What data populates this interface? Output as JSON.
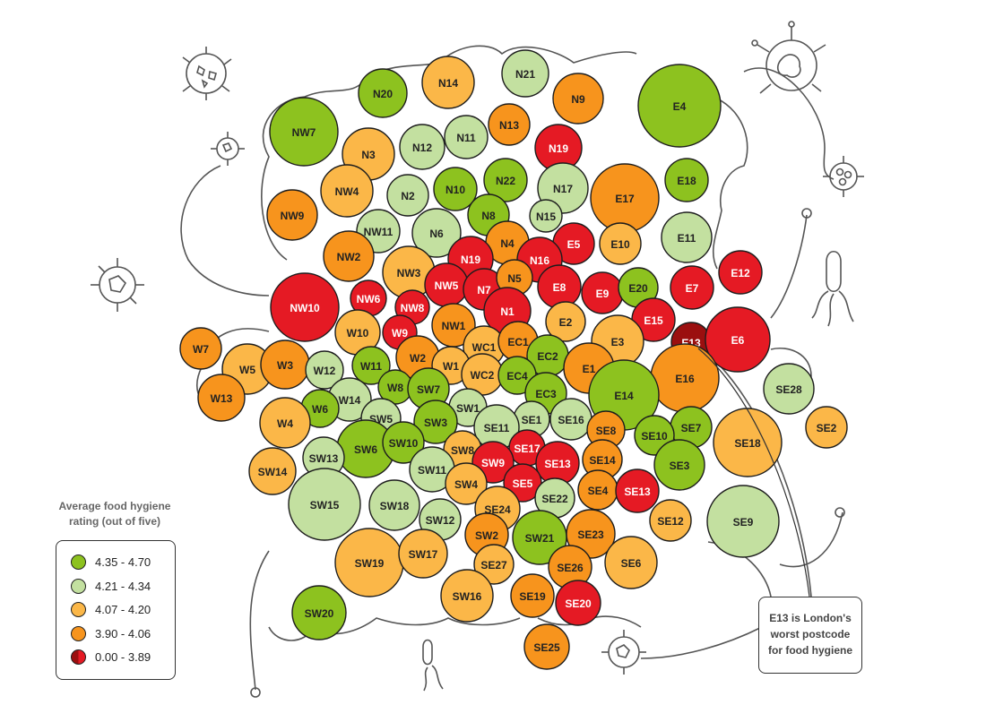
{
  "legend": {
    "title_line1": "Average food hygiene",
    "title_line2": "rating (out of five)",
    "items": [
      {
        "label": "4.35 - 4.70",
        "color": "#8dc21f"
      },
      {
        "label": "4.21 - 4.34",
        "color": "#c3e0a0"
      },
      {
        "label": "4.07 - 4.20",
        "color": "#fbb748"
      },
      {
        "label": "3.90 - 4.06",
        "color": "#f7941d"
      },
      {
        "label": "0.00 - 3.89",
        "color": "#e51a24",
        "color2": "#9b0f0f"
      }
    ]
  },
  "callout": {
    "line1": "E13 is London's",
    "line2": "worst postcode",
    "line3": "for food hygiene"
  },
  "chart_data": {
    "type": "bubble-map",
    "colors": {
      "t1": "#8dc21f",
      "t2": "#c3e0a0",
      "t3": "#fbb748",
      "t4": "#f7941d",
      "t5": "#e51a24",
      "worst": "#9b0f0f"
    },
    "postcodes": [
      {
        "label": "N20",
        "tier": "t1"
      },
      {
        "label": "N14",
        "tier": "t3"
      },
      {
        "label": "N21",
        "tier": "t2"
      },
      {
        "label": "N9",
        "tier": "t4"
      },
      {
        "label": "E4",
        "tier": "t1"
      },
      {
        "label": "NW7",
        "tier": "t1"
      },
      {
        "label": "N13",
        "tier": "t4"
      },
      {
        "label": "N12",
        "tier": "t2"
      },
      {
        "label": "N11",
        "tier": "t2"
      },
      {
        "label": "N3",
        "tier": "t3"
      },
      {
        "label": "N19",
        "tier": "t5"
      },
      {
        "label": "N22",
        "tier": "t1"
      },
      {
        "label": "N17",
        "tier": "t2"
      },
      {
        "label": "E17",
        "tier": "t4"
      },
      {
        "label": "E18",
        "tier": "t1"
      },
      {
        "label": "NW4",
        "tier": "t3"
      },
      {
        "label": "N2",
        "tier": "t2"
      },
      {
        "label": "N10",
        "tier": "t1"
      },
      {
        "label": "N8",
        "tier": "t1"
      },
      {
        "label": "N15",
        "tier": "t2"
      },
      {
        "label": "NW9",
        "tier": "t4"
      },
      {
        "label": "NW11",
        "tier": "t2"
      },
      {
        "label": "N6",
        "tier": "t2"
      },
      {
        "label": "N4",
        "tier": "t4"
      },
      {
        "label": "E5",
        "tier": "t5"
      },
      {
        "label": "E10",
        "tier": "t3"
      },
      {
        "label": "E11",
        "tier": "t2"
      },
      {
        "label": "NW2",
        "tier": "t4"
      },
      {
        "label": "N19",
        "tier": "t5"
      },
      {
        "label": "N16",
        "tier": "t5"
      },
      {
        "label": "E12",
        "tier": "t5"
      },
      {
        "label": "NW3",
        "tier": "t3"
      },
      {
        "label": "NW5",
        "tier": "t5"
      },
      {
        "label": "N7",
        "tier": "t5"
      },
      {
        "label": "N5",
        "tier": "t4"
      },
      {
        "label": "E8",
        "tier": "t5"
      },
      {
        "label": "E9",
        "tier": "t5"
      },
      {
        "label": "E20",
        "tier": "t1"
      },
      {
        "label": "E7",
        "tier": "t5"
      },
      {
        "label": "NW10",
        "tier": "t5"
      },
      {
        "label": "NW6",
        "tier": "t5"
      },
      {
        "label": "NW8",
        "tier": "t5"
      },
      {
        "label": "N1",
        "tier": "t5"
      },
      {
        "label": "E2",
        "tier": "t3"
      },
      {
        "label": "E15",
        "tier": "t5"
      },
      {
        "label": "NW1",
        "tier": "t4"
      },
      {
        "label": "W10",
        "tier": "t3"
      },
      {
        "label": "W9",
        "tier": "t5"
      },
      {
        "label": "E3",
        "tier": "t3"
      },
      {
        "label": "E13",
        "tier": "worst"
      },
      {
        "label": "E6",
        "tier": "t5"
      },
      {
        "label": "W7",
        "tier": "t4"
      },
      {
        "label": "WC1",
        "tier": "t3"
      },
      {
        "label": "EC1",
        "tier": "t4"
      },
      {
        "label": "W5",
        "tier": "t3"
      },
      {
        "label": "W3",
        "tier": "t4"
      },
      {
        "label": "W12",
        "tier": "t2"
      },
      {
        "label": "W11",
        "tier": "t1"
      },
      {
        "label": "W2",
        "tier": "t4"
      },
      {
        "label": "W1",
        "tier": "t3"
      },
      {
        "label": "EC2",
        "tier": "t1"
      },
      {
        "label": "E1",
        "tier": "t4"
      },
      {
        "label": "WC2",
        "tier": "t3"
      },
      {
        "label": "EC4",
        "tier": "t1"
      },
      {
        "label": "E16",
        "tier": "t4"
      },
      {
        "label": "W13",
        "tier": "t4"
      },
      {
        "label": "W8",
        "tier": "t1"
      },
      {
        "label": "SW7",
        "tier": "t1"
      },
      {
        "label": "EC3",
        "tier": "t1"
      },
      {
        "label": "E14",
        "tier": "t1"
      },
      {
        "label": "SE28",
        "tier": "t2"
      },
      {
        "label": "W14",
        "tier": "t2"
      },
      {
        "label": "W6",
        "tier": "t1"
      },
      {
        "label": "SW1",
        "tier": "t2"
      },
      {
        "label": "SE1",
        "tier": "t2"
      },
      {
        "label": "SE16",
        "tier": "t2"
      },
      {
        "label": "SE2",
        "tier": "t3"
      },
      {
        "label": "W4",
        "tier": "t3"
      },
      {
        "label": "SW5",
        "tier": "t2"
      },
      {
        "label": "SW3",
        "tier": "t1"
      },
      {
        "label": "SE11",
        "tier": "t2"
      },
      {
        "label": "SE8",
        "tier": "t4"
      },
      {
        "label": "SE7",
        "tier": "t1"
      },
      {
        "label": "SE10",
        "tier": "t1"
      },
      {
        "label": "SE18",
        "tier": "t3"
      },
      {
        "label": "SW6",
        "tier": "t1"
      },
      {
        "label": "SW10",
        "tier": "t1"
      },
      {
        "label": "SW8",
        "tier": "t3"
      },
      {
        "label": "SE17",
        "tier": "t5"
      },
      {
        "label": "SW13",
        "tier": "t2"
      },
      {
        "label": "SE14",
        "tier": "t4"
      },
      {
        "label": "SW11",
        "tier": "t2"
      },
      {
        "label": "SW9",
        "tier": "t5"
      },
      {
        "label": "SE13",
        "tier": "t5"
      },
      {
        "label": "SE3",
        "tier": "t1"
      },
      {
        "label": "SW14",
        "tier": "t3"
      },
      {
        "label": "SE5",
        "tier": "t5"
      },
      {
        "label": "SW4",
        "tier": "t3"
      },
      {
        "label": "SE4",
        "tier": "t4"
      },
      {
        "label": "SE13",
        "tier": "t5"
      },
      {
        "label": "SE22",
        "tier": "t2"
      },
      {
        "label": "SW15",
        "tier": "t2"
      },
      {
        "label": "SW18",
        "tier": "t2"
      },
      {
        "label": "SE24",
        "tier": "t3"
      },
      {
        "label": "SW12",
        "tier": "t2"
      },
      {
        "label": "SE12",
        "tier": "t3"
      },
      {
        "label": "SE9",
        "tier": "t2"
      },
      {
        "label": "SW2",
        "tier": "t4"
      },
      {
        "label": "SW21",
        "tier": "t1"
      },
      {
        "label": "SE23",
        "tier": "t4"
      },
      {
        "label": "SW19",
        "tier": "t3"
      },
      {
        "label": "SW17",
        "tier": "t3"
      },
      {
        "label": "SE27",
        "tier": "t3"
      },
      {
        "label": "SE26",
        "tier": "t4"
      },
      {
        "label": "SE6",
        "tier": "t3"
      },
      {
        "label": "SW16",
        "tier": "t3"
      },
      {
        "label": "SE19",
        "tier": "t4"
      },
      {
        "label": "SE20",
        "tier": "t5"
      },
      {
        "label": "SW20",
        "tier": "t1"
      },
      {
        "label": "SE25",
        "tier": "t4"
      }
    ]
  }
}
